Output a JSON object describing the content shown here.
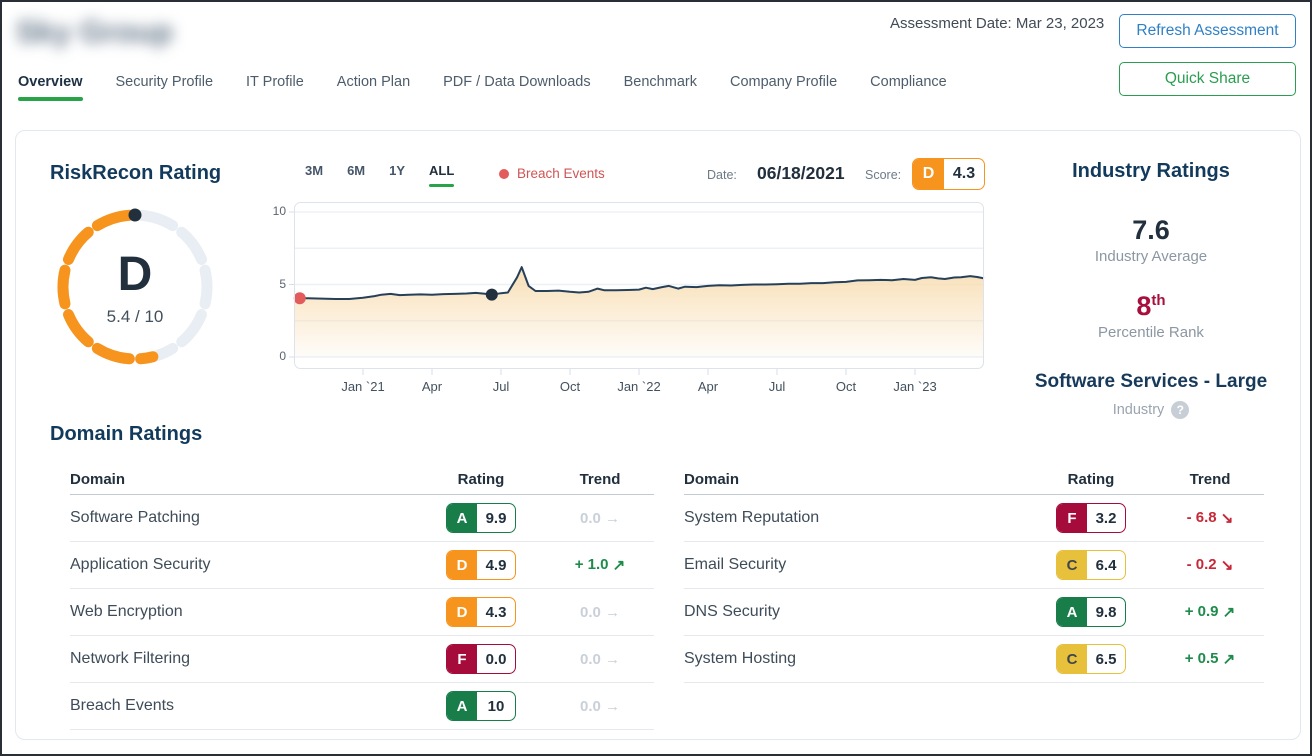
{
  "header": {
    "company_name": "Sky Group",
    "company_name_obscured": true,
    "assessment_date": "Assessment Date: Mar 23, 2023",
    "refresh_button": "Refresh Assessment",
    "quick_share_button": "Quick Share"
  },
  "tabs": [
    {
      "label": "Overview",
      "active": true
    },
    {
      "label": "Security Profile",
      "active": false
    },
    {
      "label": "IT Profile",
      "active": false
    },
    {
      "label": "Action Plan",
      "active": false
    },
    {
      "label": "PDF / Data Downloads",
      "active": false
    },
    {
      "label": "Benchmark",
      "active": false
    },
    {
      "label": "Company Profile",
      "active": false
    },
    {
      "label": "Compliance",
      "active": false
    }
  ],
  "rating_panel": {
    "title": "RiskRecon Rating",
    "grade": "D",
    "score_display": "5.4 / 10",
    "score": 5.4,
    "max_score": 10
  },
  "chart_controls": {
    "ranges": [
      "3M",
      "6M",
      "1Y",
      "ALL"
    ],
    "active_range": "ALL",
    "legend_label": "Breach Events",
    "date_label": "Date:",
    "date_value": "06/18/2021",
    "score_label": "Score:",
    "score_grade": "D",
    "score_value": "4.3"
  },
  "chart_data": {
    "type": "line",
    "title": "RiskRecon rating history",
    "x_unit": "months since Oct 2020",
    "ylim": [
      0,
      10
    ],
    "ytick_values": [
      0,
      5,
      10
    ],
    "gridline_values": [
      0,
      2.5,
      5,
      7.5,
      10
    ],
    "xticks": [
      {
        "t": 3,
        "label": "Jan `21"
      },
      {
        "t": 6,
        "label": "Apr"
      },
      {
        "t": 9,
        "label": "Jul"
      },
      {
        "t": 12,
        "label": "Oct"
      },
      {
        "t": 15,
        "label": "Jan `22"
      },
      {
        "t": 18,
        "label": "Apr"
      },
      {
        "t": 21,
        "label": "Jul"
      },
      {
        "t": 24,
        "label": "Oct"
      },
      {
        "t": 27,
        "label": "Jan `23"
      }
    ],
    "points": [
      [
        0,
        4.05
      ],
      [
        0.6,
        4.05
      ],
      [
        1.2,
        4.03
      ],
      [
        1.8,
        4.0
      ],
      [
        2.4,
        4.0
      ],
      [
        3,
        4.08
      ],
      [
        3.5,
        4.2
      ],
      [
        3.8,
        4.3
      ],
      [
        4.2,
        4.35
      ],
      [
        4.6,
        4.27
      ],
      [
        5,
        4.3
      ],
      [
        5.5,
        4.32
      ],
      [
        6,
        4.3
      ],
      [
        6.5,
        4.34
      ],
      [
        7,
        4.35
      ],
      [
        7.5,
        4.38
      ],
      [
        7.9,
        4.42
      ],
      [
        8.3,
        4.36
      ],
      [
        8.6,
        4.3
      ],
      [
        9,
        4.4
      ],
      [
        9.3,
        4.45
      ],
      [
        9.7,
        5.5
      ],
      [
        9.9,
        6.2
      ],
      [
        10.2,
        4.9
      ],
      [
        10.5,
        4.55
      ],
      [
        11,
        4.55
      ],
      [
        11.5,
        4.58
      ],
      [
        12,
        4.5
      ],
      [
        12.4,
        4.45
      ],
      [
        12.8,
        4.5
      ],
      [
        13.2,
        4.72
      ],
      [
        13.5,
        4.6
      ],
      [
        14,
        4.6
      ],
      [
        14.5,
        4.62
      ],
      [
        15,
        4.65
      ],
      [
        15.3,
        4.78
      ],
      [
        15.6,
        4.68
      ],
      [
        16,
        4.82
      ],
      [
        16.3,
        4.9
      ],
      [
        16.7,
        4.72
      ],
      [
        17,
        4.85
      ],
      [
        17.5,
        4.82
      ],
      [
        18,
        4.9
      ],
      [
        18.5,
        4.95
      ],
      [
        19,
        4.93
      ],
      [
        19.5,
        4.97
      ],
      [
        20,
        5.0
      ],
      [
        20.5,
        5.0
      ],
      [
        21,
        5.02
      ],
      [
        21.5,
        5.05
      ],
      [
        22,
        5.05
      ],
      [
        22.5,
        5.1
      ],
      [
        23,
        5.1
      ],
      [
        23.5,
        5.15
      ],
      [
        24,
        5.18
      ],
      [
        24.5,
        5.28
      ],
      [
        25,
        5.3
      ],
      [
        25.5,
        5.32
      ],
      [
        26,
        5.3
      ],
      [
        26.5,
        5.38
      ],
      [
        27,
        5.32
      ],
      [
        27.3,
        5.45
      ],
      [
        27.7,
        5.5
      ],
      [
        28,
        5.42
      ],
      [
        28.3,
        5.38
      ],
      [
        28.7,
        5.48
      ],
      [
        29,
        5.5
      ],
      [
        29.4,
        5.58
      ],
      [
        29.7,
        5.52
      ],
      [
        30,
        5.42
      ]
    ],
    "markers": [
      {
        "t": 0.25,
        "v": 4.05,
        "color": "#e25c5c",
        "name": "breach-event-marker"
      },
      {
        "t": 8.6,
        "v": 4.3,
        "color": "#22303e",
        "name": "selected-date-marker"
      }
    ],
    "line_color": "#27405a",
    "area_top_color": "#f8ddb2",
    "legend": "Breach Events"
  },
  "industry": {
    "title": "Industry Ratings",
    "average": "7.6",
    "average_label": "Industry Average",
    "percentile": "8",
    "percentile_suffix": "th",
    "percentile_label": "Percentile Rank",
    "sector": "Software Services - Large",
    "sector_label": "Industry",
    "help_icon_glyph": "?"
  },
  "domain_ratings": {
    "title": "Domain Ratings",
    "columns": {
      "domain": "Domain",
      "rating": "Rating",
      "trend": "Trend"
    },
    "left": [
      {
        "domain": "Software Patching",
        "grade": "A",
        "score": "9.9",
        "trend": "0.0",
        "dir": "flat"
      },
      {
        "domain": "Application Security",
        "grade": "D",
        "score": "4.9",
        "trend": "+ 1.0",
        "dir": "up"
      },
      {
        "domain": "Web Encryption",
        "grade": "D",
        "score": "4.3",
        "trend": "0.0",
        "dir": "flat"
      },
      {
        "domain": "Network Filtering",
        "grade": "F",
        "score": "0.0",
        "trend": "0.0",
        "dir": "flat"
      },
      {
        "domain": "Breach Events",
        "grade": "A",
        "score": "10",
        "trend": "0.0",
        "dir": "flat"
      }
    ],
    "right": [
      {
        "domain": "System Reputation",
        "grade": "F",
        "score": "3.2",
        "trend": "- 6.8",
        "dir": "down"
      },
      {
        "domain": "Email Security",
        "grade": "C",
        "score": "6.4",
        "trend": "- 0.2",
        "dir": "down"
      },
      {
        "domain": "DNS Security",
        "grade": "A",
        "score": "9.8",
        "trend": "+ 0.9",
        "dir": "up"
      },
      {
        "domain": "System Hosting",
        "grade": "C",
        "score": "6.5",
        "trend": "+ 0.5",
        "dir": "up"
      }
    ]
  },
  "colors": {
    "grade_A": "#187d49",
    "grade_C": "#e7c03c",
    "grade_D": "#f7941e",
    "grade_F": "#a60c3b",
    "grade_C_text": "#3f4650",
    "accent_green": "#28a348",
    "button_blue": "#2f80c4",
    "button_green": "#2a9d50",
    "trend_up": "#1d8c4b",
    "trend_down": "#c62838",
    "trend_flat": "#c9d0d9",
    "gauge_fill": "#f7941e",
    "gauge_track": "#e9eef4"
  }
}
